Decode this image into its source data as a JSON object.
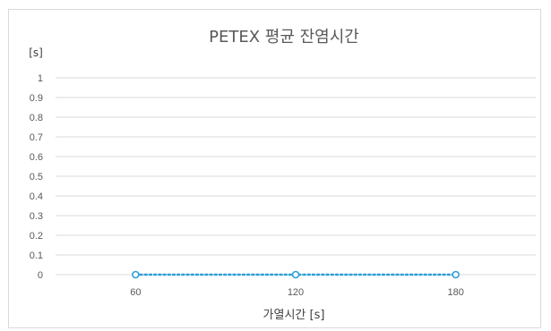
{
  "chart_data": {
    "type": "line",
    "title": "PETEX 평균 잔염시간",
    "ylabel": "[s]",
    "xlabel": "가열시간 [s]",
    "categories": [
      "60",
      "120",
      "180"
    ],
    "series": [
      {
        "values": [
          0,
          0,
          0
        ]
      }
    ],
    "ylim": [
      0,
      1
    ],
    "yticks": [
      "0",
      "0.1",
      "0.2",
      "0.3",
      "0.4",
      "0.5",
      "0.6",
      "0.7",
      "0.8",
      "0.9",
      "1"
    ],
    "grid": true,
    "legend": "none",
    "colors": {
      "series": "#2e9fd8",
      "grid": "#d9d9d9"
    }
  }
}
